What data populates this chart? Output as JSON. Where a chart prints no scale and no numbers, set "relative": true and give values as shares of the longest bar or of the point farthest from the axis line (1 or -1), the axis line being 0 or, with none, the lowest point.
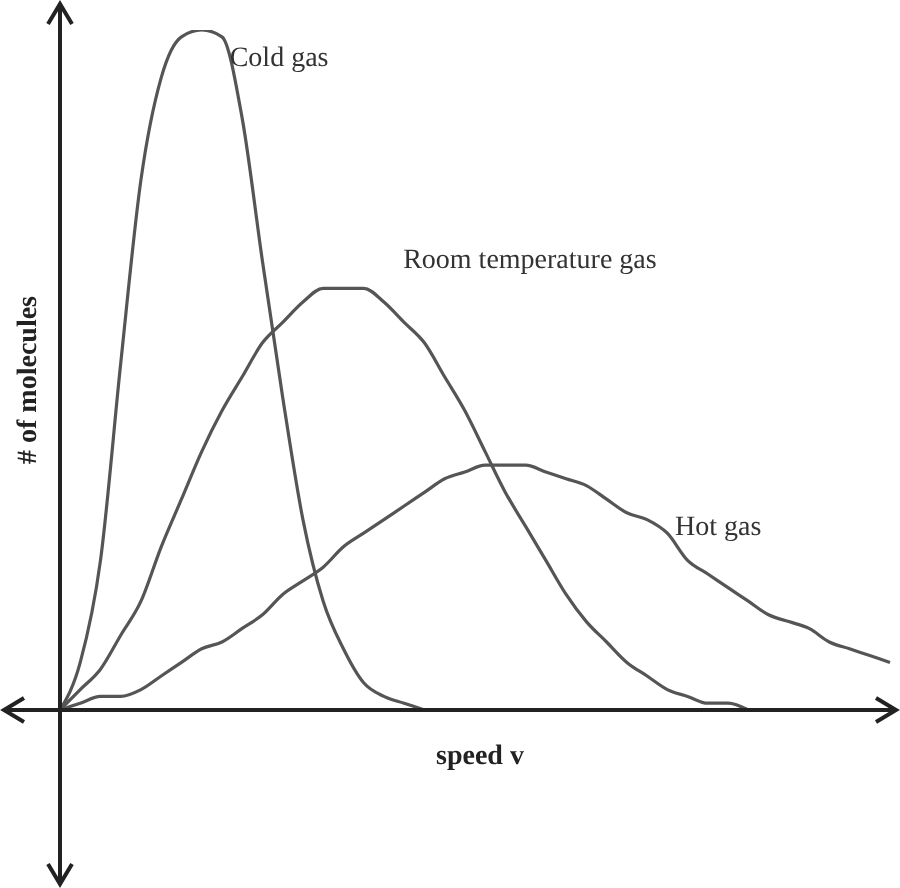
{
  "chart_data": {
    "type": "line",
    "relative": true,
    "xlabel": "speed v",
    "ylabel": "# of molecules",
    "line_style": "solid",
    "categories": [
      null,
      null,
      null,
      null,
      null,
      null,
      null,
      null,
      null,
      null,
      null,
      null,
      null,
      null,
      null,
      null,
      null,
      null,
      null,
      null,
      null,
      null,
      null,
      null,
      null,
      null,
      null,
      null,
      null,
      null,
      null,
      null,
      null,
      null,
      null,
      null,
      null,
      null,
      null,
      null,
      null,
      null
    ],
    "series": [
      {
        "name": "Cold gas",
        "color": "#555555",
        "values": [
          0,
          0.07,
          0.22,
          0.51,
          0.78,
          0.93,
          0.99,
          1,
          0.99,
          0.87,
          0.66,
          0.46,
          0.28,
          0.16,
          0.09,
          0.04,
          0.02,
          0.01,
          0,
          null,
          null,
          null,
          null,
          null,
          null,
          null,
          null,
          null,
          null,
          null,
          null,
          null,
          null,
          null,
          null,
          null,
          null,
          null,
          null,
          null,
          null,
          null
        ]
      },
      {
        "name": "Room temperature gas",
        "color": "#555555",
        "values": [
          0,
          0.03,
          0.06,
          0.11,
          0.16,
          0.24,
          0.31,
          0.38,
          0.44,
          0.49,
          0.54,
          0.57,
          0.6,
          0.62,
          0.62,
          0.62,
          0.6,
          0.57,
          0.54,
          0.49,
          0.44,
          0.38,
          0.32,
          0.27,
          0.22,
          0.17,
          0.13,
          0.1,
          0.07,
          0.05,
          0.03,
          0.02,
          0.01,
          0.01,
          0,
          null,
          null,
          null,
          null,
          null,
          null,
          null
        ]
      },
      {
        "name": "Hot gas",
        "color": "#555555",
        "values": [
          0,
          0.01,
          0.02,
          0.02,
          0.03,
          0.05,
          0.07,
          0.09,
          0.1,
          0.12,
          0.14,
          0.17,
          0.19,
          0.21,
          0.24,
          0.26,
          0.28,
          0.3,
          0.32,
          0.34,
          0.35,
          0.36,
          0.36,
          0.36,
          0.35,
          0.34,
          0.33,
          0.31,
          0.29,
          0.28,
          0.26,
          0.22,
          0.2,
          0.18,
          0.16,
          0.14,
          0.13,
          0.12,
          0.1,
          0.09,
          0.08,
          0.07
        ]
      }
    ]
  }
}
